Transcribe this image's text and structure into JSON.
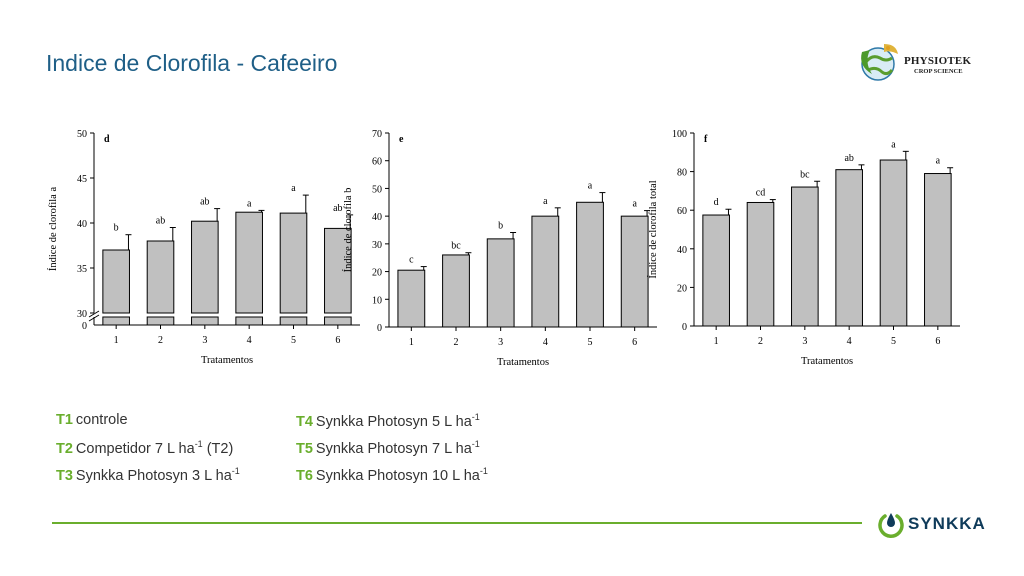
{
  "page": {
    "title": "Indice de Clorofila - Cafeeiro",
    "logo_physiotek": {
      "name": "PHYSIOTEK",
      "sub": "CROP SCIENCE"
    },
    "logo_synkka": {
      "name": "SYNKKA"
    },
    "colors": {
      "title": "#1f5f87",
      "accent": "#6aae2d",
      "bar": "#c0c0c0",
      "brand": "#0f3b5a"
    }
  },
  "legend": [
    {
      "code": "T1",
      "text": "controle",
      "sup": "",
      "tail": ""
    },
    {
      "code": "T2",
      "text": "Competidor 7 L ha",
      "sup": "-1",
      "tail": " (T2)"
    },
    {
      "code": "T3",
      "text": "Synkka Photosyn 3 L ha",
      "sup": "-1",
      "tail": ""
    },
    {
      "code": "T4",
      "text": "Synkka Photosyn 5 L ha",
      "sup": "-1",
      "tail": ""
    },
    {
      "code": "T5",
      "text": "Synkka Photosyn 7 L ha",
      "sup": "-1",
      "tail": ""
    },
    {
      "code": "T6",
      "text": "Synkka Photosyn 10 L ha",
      "sup": "-1",
      "tail": ""
    }
  ],
  "chart_data": [
    {
      "type": "bar",
      "panel_label": "d",
      "ylabel": "Índice de clorofila a",
      "xlabel": "Tratamentos",
      "categories": [
        "1",
        "2",
        "3",
        "4",
        "5",
        "6"
      ],
      "values": [
        37.0,
        38.0,
        40.2,
        41.2,
        41.1,
        39.4
      ],
      "errors": [
        1.7,
        1.5,
        1.4,
        0.2,
        2.0,
        1.5
      ],
      "letters": [
        "b",
        "ab",
        "ab",
        "a",
        "a",
        "ab"
      ],
      "ylim": [
        30,
        50
      ],
      "yticks": [
        30,
        35,
        40,
        45,
        50
      ],
      "axis_break": true,
      "broken_axis_base": 0
    },
    {
      "type": "bar",
      "panel_label": "e",
      "ylabel": "Índice de clorofila b",
      "xlabel": "Tratamentos",
      "categories": [
        "1",
        "2",
        "3",
        "4",
        "5",
        "6"
      ],
      "values": [
        20.5,
        26.0,
        31.8,
        40.0,
        45.0,
        40.0
      ],
      "errors": [
        1.3,
        0.8,
        2.3,
        3.0,
        3.5,
        2.0
      ],
      "letters": [
        "c",
        "bc",
        "b",
        "a",
        "a",
        "a"
      ],
      "ylim": [
        0,
        70
      ],
      "yticks": [
        0,
        10,
        20,
        30,
        40,
        50,
        60,
        70
      ]
    },
    {
      "type": "bar",
      "panel_label": "f",
      "ylabel": "Índice de clorofila total",
      "xlabel": "Tratamentos",
      "categories": [
        "1",
        "2",
        "3",
        "4",
        "5",
        "6"
      ],
      "values": [
        57.5,
        64.0,
        72.0,
        81.0,
        86.0,
        79.0
      ],
      "errors": [
        3.0,
        1.5,
        3.0,
        2.5,
        4.5,
        3.0
      ],
      "letters": [
        "d",
        "cd",
        "bc",
        "ab",
        "a",
        "a"
      ],
      "ylim": [
        0,
        100
      ],
      "yticks": [
        0,
        20,
        40,
        60,
        80,
        100
      ]
    }
  ]
}
